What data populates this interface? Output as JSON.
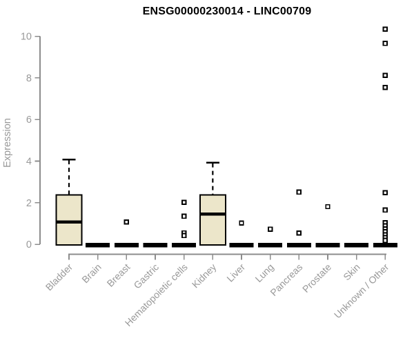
{
  "chart_data": {
    "type": "box",
    "title": "ENSG00000230014 - LINC00709",
    "ylabel": "Expression",
    "xlabel": "",
    "ylim": [
      0,
      10
    ],
    "yticks": [
      0,
      2,
      4,
      6,
      8,
      10
    ],
    "grid": false,
    "legend": "none",
    "categories": [
      "Bladder",
      "Brain",
      "Breast",
      "Gastric",
      "Hematopoietic cells",
      "Kidney",
      "Liver",
      "Lung",
      "Pancreas",
      "Prostate",
      "Skin",
      "Unknown / Other"
    ],
    "series": [
      {
        "category": "Bladder",
        "min": 0,
        "q1": 0,
        "median": 1.08,
        "q3": 2.38,
        "whisker_high": 4.08,
        "outliers": []
      },
      {
        "category": "Brain",
        "min": 0,
        "q1": 0,
        "median": 0,
        "q3": 0,
        "whisker_high": 0,
        "outliers": []
      },
      {
        "category": "Breast",
        "min": 0,
        "q1": 0,
        "median": 0,
        "q3": 0,
        "whisker_high": 0,
        "outliers": [
          1.07
        ]
      },
      {
        "category": "Gastric",
        "min": 0,
        "q1": 0,
        "median": 0,
        "q3": 0,
        "whisker_high": 0,
        "outliers": []
      },
      {
        "category": "Hematopoietic cells",
        "min": 0,
        "q1": 0,
        "median": 0,
        "q3": 0,
        "whisker_high": 0,
        "outliers": [
          2.02,
          1.35,
          0.55,
          0.42
        ]
      },
      {
        "category": "Kidney",
        "min": 0,
        "q1": 0,
        "median": 1.45,
        "q3": 2.37,
        "whisker_high": 3.93,
        "outliers": []
      },
      {
        "category": "Liver",
        "min": 0,
        "q1": 0,
        "median": 0,
        "q3": 0,
        "whisker_high": 0,
        "outliers": [
          1.02
        ]
      },
      {
        "category": "Lung",
        "min": 0,
        "q1": 0,
        "median": 0,
        "q3": 0,
        "whisker_high": 0,
        "outliers": [
          0.73
        ]
      },
      {
        "category": "Pancreas",
        "min": 0,
        "q1": 0,
        "median": 0,
        "q3": 0,
        "whisker_high": 0,
        "outliers": [
          2.51,
          0.54
        ]
      },
      {
        "category": "Prostate",
        "min": 0,
        "q1": 0,
        "median": 0,
        "q3": 0,
        "whisker_high": 0,
        "outliers": [
          1.81
        ]
      },
      {
        "category": "Skin",
        "min": 0,
        "q1": 0,
        "median": 0,
        "q3": 0,
        "whisker_high": 0,
        "outliers": []
      },
      {
        "category": "Unknown / Other",
        "min": 0,
        "q1": 0,
        "median": 0,
        "q3": 0,
        "whisker_high": 0,
        "outliers": [
          10.34,
          9.66,
          8.12,
          7.54,
          2.48,
          1.65,
          1.04,
          0.89,
          0.74,
          0.61,
          0.46,
          0.33,
          0.19
        ]
      }
    ],
    "colors": {
      "box_fill": "#ECE6CA",
      "box_stroke": "#000000",
      "median": "#000000",
      "whisker": "#000000",
      "outlier_stroke": "#000000",
      "outlier_fill": "#FFFFFF",
      "axis": "#8C8C8C",
      "tick_text": "#999999",
      "title_text": "#000000",
      "background": "#FFFFFF"
    }
  }
}
